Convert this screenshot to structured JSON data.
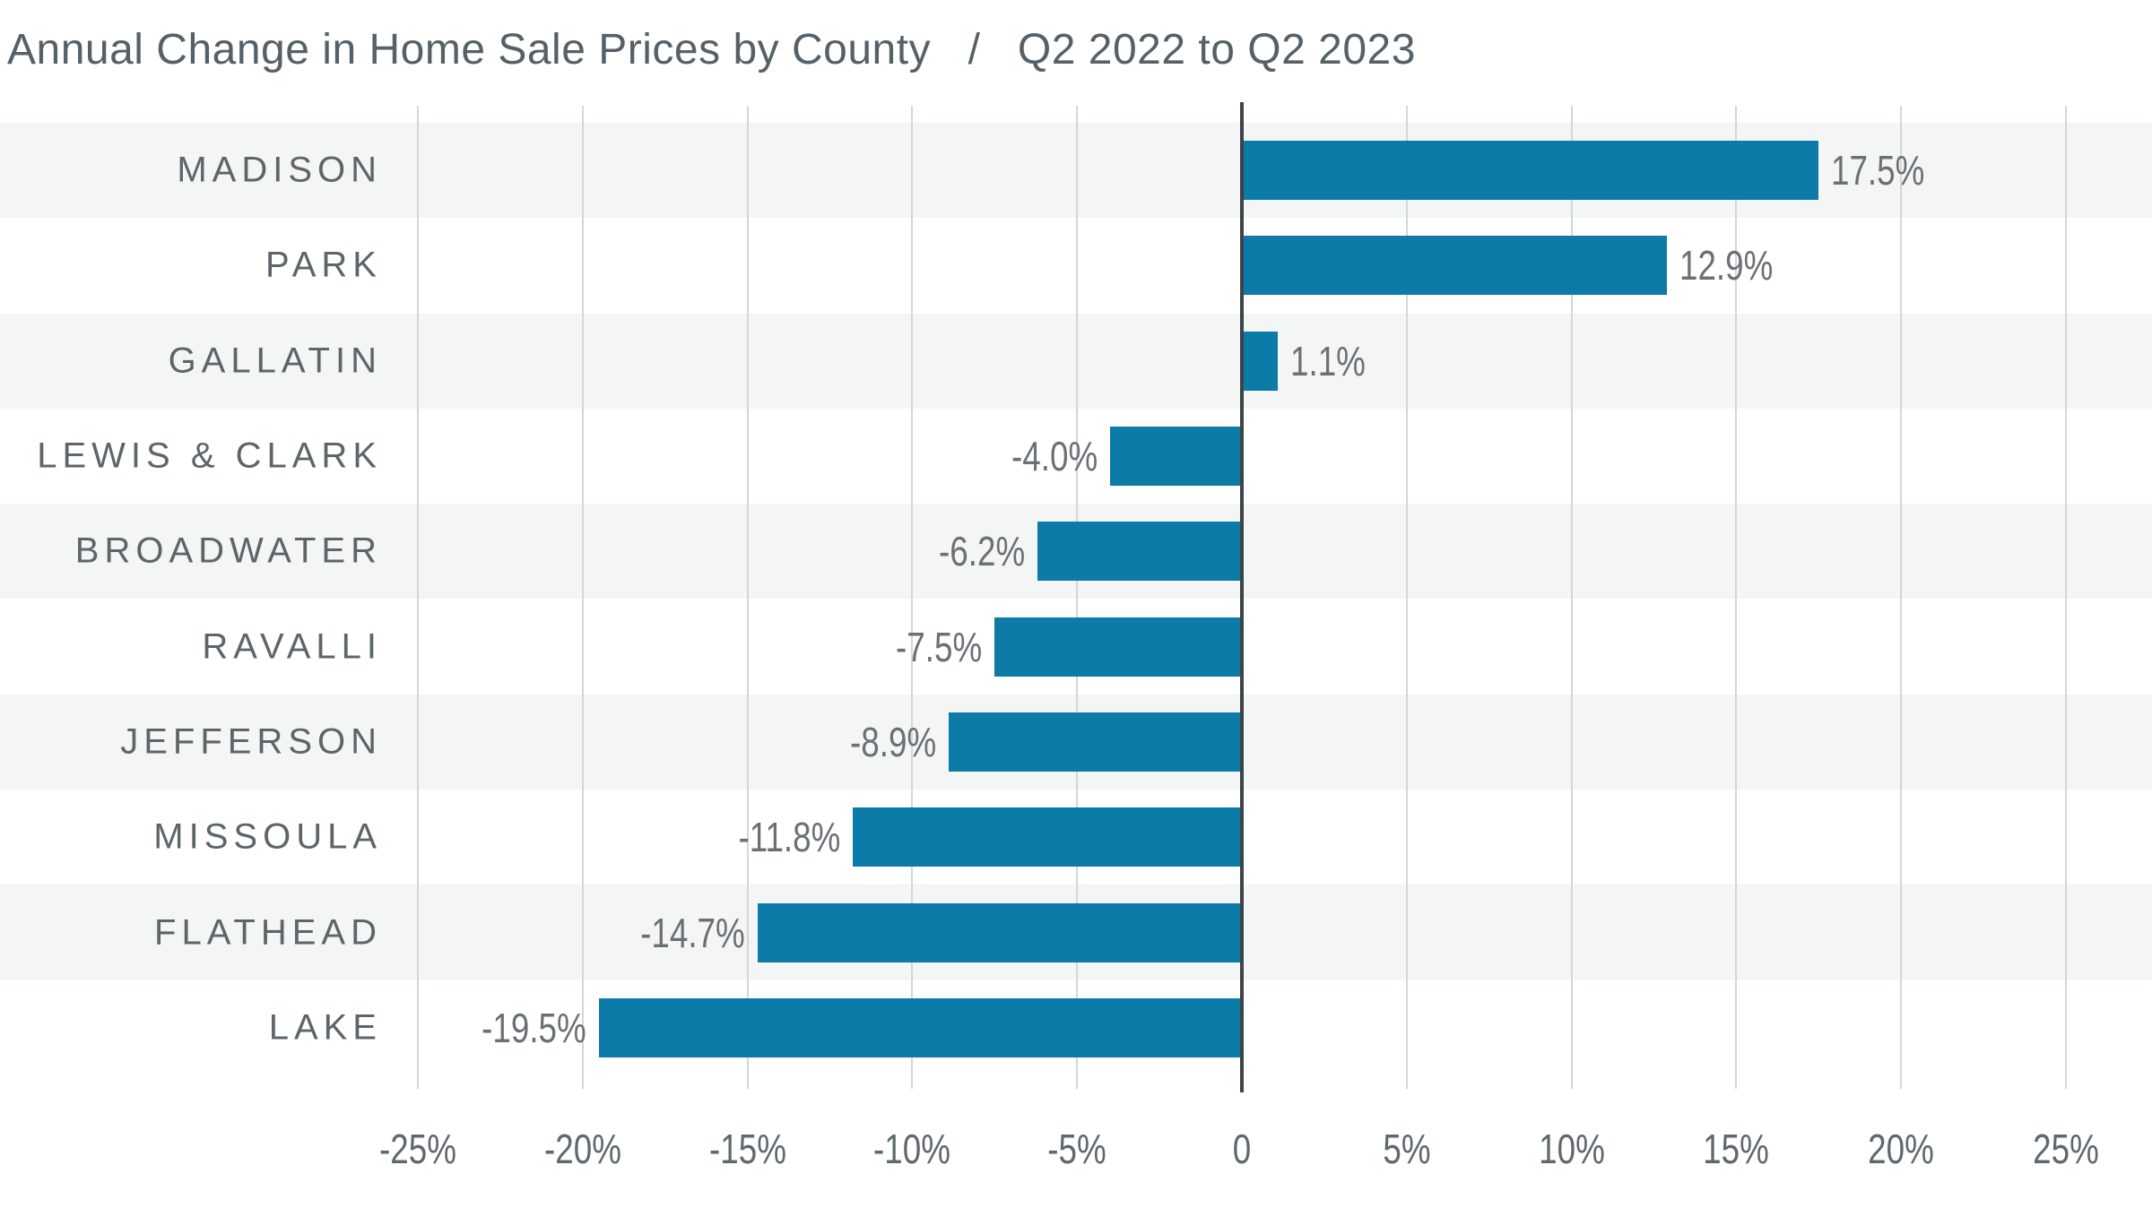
{
  "header": {
    "title": "Annual Change in Home Sale Prices by County   /   Q2 2022 to Q2 2023"
  },
  "chart_data": {
    "type": "bar",
    "orientation": "horizontal",
    "title": "Annual Change in Home Sale Prices by County / Q2 2022 to Q2 2023",
    "categories": [
      "MADISON",
      "PARK",
      "GALLATIN",
      "LEWIS & CLARK",
      "BROADWATER",
      "RAVALLI",
      "JEFFERSON",
      "MISSOULA",
      "FLATHEAD",
      "LAKE"
    ],
    "values": [
      17.5,
      12.9,
      1.1,
      -4.0,
      -6.2,
      -7.5,
      -8.9,
      -11.8,
      -14.7,
      -19.5
    ],
    "value_labels": [
      "17.5%",
      "12.9%",
      "1.1%",
      "-4.0%",
      "-6.2%",
      "-7.5%",
      "-8.9%",
      "-11.8%",
      "-14.7%",
      "-19.5%"
    ],
    "xlabel": "",
    "ylabel": "",
    "xlim": [
      -25,
      25
    ],
    "x_ticks": [
      {
        "value": -25,
        "label": "-25%"
      },
      {
        "value": -20,
        "label": "-20%"
      },
      {
        "value": -15,
        "label": "-15%"
      },
      {
        "value": -10,
        "label": "-10%"
      },
      {
        "value": -5,
        "label": "-5%"
      },
      {
        "value": 0,
        "label": "0"
      },
      {
        "value": 5,
        "label": "5%"
      },
      {
        "value": 10,
        "label": "10%"
      },
      {
        "value": 15,
        "label": "15%"
      },
      {
        "value": 20,
        "label": "20%"
      },
      {
        "value": 25,
        "label": "25%"
      }
    ],
    "grid": true,
    "legend": false,
    "zebra_striping": true
  },
  "colors": {
    "bar": "#0d7ba7",
    "stripe": "#f4f5f5",
    "gridline": "#d4d6d7",
    "zero_line": "#3d4449",
    "title_text": "#566067",
    "category_text": "#5c6569",
    "value_text": "#6a7175",
    "tick_text": "#5f686d",
    "background": "#ffffff"
  }
}
